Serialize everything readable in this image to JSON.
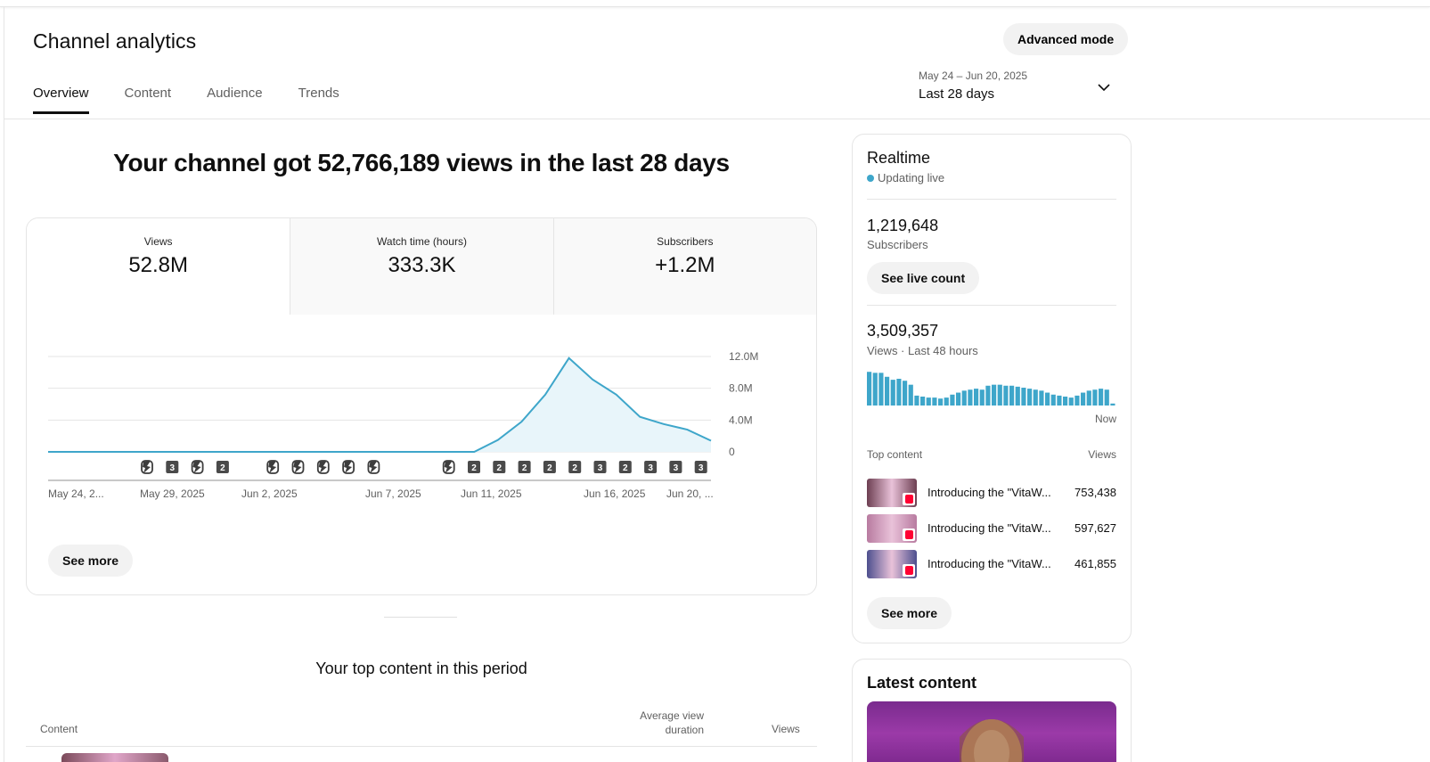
{
  "header": {
    "title": "Channel analytics",
    "advanced_mode": "Advanced mode",
    "tabs": [
      {
        "label": "Overview",
        "active": true
      },
      {
        "label": "Content",
        "active": false
      },
      {
        "label": "Audience",
        "active": false
      },
      {
        "label": "Trends",
        "active": false
      }
    ],
    "date_range": {
      "dates": "May 24 – Jun 20, 2025",
      "label": "Last 28 days"
    }
  },
  "summary": {
    "headline": "Your channel got 52,766,189 views in the last 28 days"
  },
  "metrics": [
    {
      "label": "Views",
      "value": "52.8M"
    },
    {
      "label": "Watch time (hours)",
      "value": "333.3K"
    },
    {
      "label": "Subscribers",
      "value": "+1.2M"
    }
  ],
  "chart_data": {
    "type": "area",
    "series": [
      {
        "values": [
          0,
          0,
          0,
          0,
          0,
          0,
          0,
          0,
          0,
          0,
          0,
          0,
          0,
          0,
          0,
          0,
          0,
          0,
          0,
          1.5,
          3.8,
          7.2,
          11.8,
          9.1,
          7.2,
          4.4,
          3.5,
          2.8,
          1.4
        ]
      }
    ],
    "y_ticks": [
      "12.0M",
      "8.0M",
      "4.0M",
      "0"
    ],
    "ylim": [
      0,
      12
    ],
    "x_tick_labels": [
      "May 24, 2...",
      "May 29, 2025",
      "Jun 2, 2025",
      "Jun 7, 2025",
      "Jun 11, 2025",
      "Jun 16, 2025",
      "Jun 20, ..."
    ],
    "grid": true,
    "line_color": "#3ea6ca",
    "fill_color": "#e8f5fa",
    "markers": [
      {
        "type": "short"
      },
      {
        "type": "count",
        "label": "3"
      },
      {
        "type": "short"
      },
      {
        "type": "count",
        "label": "2"
      },
      {
        "type": "short"
      },
      {
        "type": "short"
      },
      {
        "type": "short"
      },
      {
        "type": "short"
      },
      {
        "type": "short"
      },
      {
        "type": "short"
      },
      {
        "type": "count",
        "label": "2"
      },
      {
        "type": "count",
        "label": "2"
      },
      {
        "type": "count",
        "label": "2"
      },
      {
        "type": "count",
        "label": "2"
      },
      {
        "type": "count",
        "label": "2"
      },
      {
        "type": "count",
        "label": "3"
      },
      {
        "type": "count",
        "label": "2"
      },
      {
        "type": "count",
        "label": "3"
      },
      {
        "type": "count",
        "label": "3"
      },
      {
        "type": "count",
        "label": "3"
      }
    ]
  },
  "overview_card": {
    "see_more": "See more"
  },
  "top_content": {
    "title": "Your top content in this period",
    "columns": {
      "content": "Content",
      "avg_duration": "Average view duration",
      "views": "Views"
    }
  },
  "realtime": {
    "title": "Realtime",
    "status": "Updating live",
    "subscribers": {
      "value": "1,219,648",
      "label": "Subscribers"
    },
    "see_live_count": "See live count",
    "views": {
      "value": "3,509,357",
      "label": "Views · Last 48 hours"
    },
    "bars": [
      34,
      33,
      33,
      29,
      26,
      27,
      25,
      21,
      10,
      9,
      8,
      8,
      7,
      8,
      11,
      13,
      15,
      16,
      17,
      16,
      20,
      21,
      21,
      20,
      20,
      19,
      18,
      17,
      16,
      15,
      13,
      11,
      10,
      9,
      8,
      10,
      13,
      15,
      16,
      17,
      16,
      2
    ],
    "bar_color": "#3ea6ca",
    "now_label": "Now",
    "top_content_header": "Top content",
    "views_header": "Views",
    "items": [
      {
        "title": "Introducing the \"VitaW...",
        "views": "753,438",
        "thumb": "#6d3f52"
      },
      {
        "title": "Introducing the \"VitaW...",
        "views": "597,627",
        "thumb": "#b87ba0"
      },
      {
        "title": "Introducing the \"VitaW...",
        "views": "461,855",
        "thumb": "#4d4f8e"
      }
    ],
    "see_more": "See more"
  },
  "latest_content": {
    "title": "Latest content"
  }
}
